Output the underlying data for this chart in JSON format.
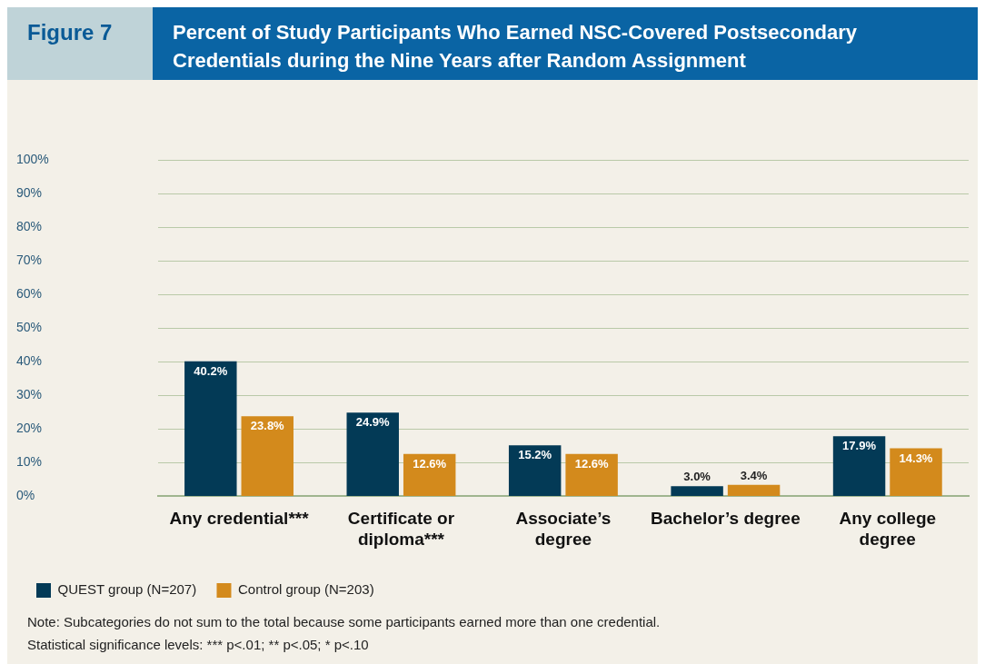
{
  "chart_data": {
    "type": "bar",
    "subtitle": "Figure 7",
    "title": "Percent of Study Participants Who Earned NSC-Covered Postsecondary Credentials during the Nine Years after Random Assignment",
    "categories": [
      "Any credential***",
      "Certificate or diploma***",
      "Associate’s degree",
      "Bachelor’s degree",
      "Any college degree"
    ],
    "series": [
      {
        "name": "QUEST group (N=207)",
        "color": "#033a56",
        "values": [
          40.2,
          24.9,
          15.2,
          3.0,
          17.9
        ],
        "value_labels": [
          "40.2%",
          "24.9%",
          "15.2%",
          "3.0%",
          "17.9%"
        ]
      },
      {
        "name": "Control group (N=203)",
        "color": "#d38a1c",
        "values": [
          23.8,
          12.6,
          12.6,
          3.4,
          14.3
        ],
        "value_labels": [
          "23.8%",
          "12.6%",
          "12.6%",
          "3.4%",
          "14.3%"
        ]
      }
    ],
    "ylim": [
      0,
      100
    ],
    "yticks": [
      {
        "value": 0,
        "label": "0%"
      },
      {
        "value": 10,
        "label": "10%"
      },
      {
        "value": 20,
        "label": "20%"
      },
      {
        "value": 30,
        "label": "30%"
      },
      {
        "value": 40,
        "label": "40%"
      },
      {
        "value": 50,
        "label": "50%"
      },
      {
        "value": 60,
        "label": "60%"
      },
      {
        "value": 70,
        "label": "70%"
      },
      {
        "value": 80,
        "label": "80%"
      },
      {
        "value": 90,
        "label": "90%"
      },
      {
        "value": 100,
        "label": "100%"
      }
    ],
    "grid": "y",
    "legend": "bottom left",
    "annotations": [
      "Note: Subcategories do not sum to the total because some participants earned more than one credential.",
      "Statistical significance levels: *** p<.01; ** p<.05; * p<.10"
    ]
  }
}
